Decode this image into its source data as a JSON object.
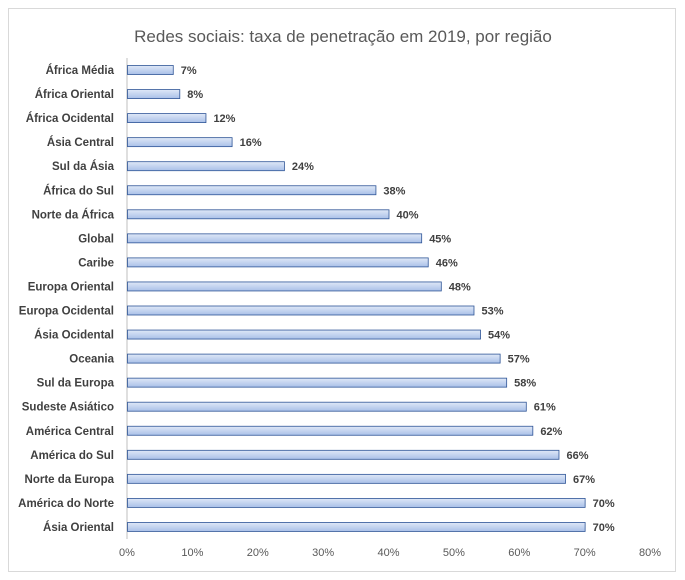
{
  "chart_data": {
    "type": "bar",
    "orientation": "horizontal",
    "title": "Redes sociais: taxa de penetração em 2019, por região",
    "categories": [
      "África Média",
      "África Oriental",
      "África Ocidental",
      "Ásia Central",
      "Sul da Ásia",
      "África do Sul",
      "Norte da África",
      "Global",
      "Caribe",
      "Europa Oriental",
      "Europa Ocidental",
      "Ásia Ocidental",
      "Oceania",
      "Sul da Europa",
      "Sudeste Asiático",
      "América Central",
      "América do Sul",
      "Norte da Europa",
      "América do Norte",
      "Ásia Oriental"
    ],
    "values": [
      7,
      8,
      12,
      16,
      24,
      38,
      40,
      45,
      46,
      48,
      53,
      54,
      57,
      58,
      61,
      62,
      66,
      67,
      70,
      70
    ],
    "data_labels": [
      "7%",
      "8%",
      "12%",
      "16%",
      "24%",
      "38%",
      "40%",
      "45%",
      "46%",
      "48%",
      "53%",
      "54%",
      "57%",
      "58%",
      "61%",
      "62%",
      "66%",
      "67%",
      "70%",
      "70%"
    ],
    "xlim": [
      0,
      80
    ],
    "x_ticks": [
      0,
      10,
      20,
      30,
      40,
      50,
      60,
      70,
      80
    ],
    "x_tick_labels": [
      "0%",
      "10%",
      "20%",
      "30%",
      "40%",
      "50%",
      "60%",
      "70%",
      "80%"
    ],
    "xlabel": "",
    "ylabel": "",
    "grid": false,
    "legend": "none",
    "colors": {
      "bar_fill_top": "#dfe8f7",
      "bar_fill_bottom": "#a9c0e8",
      "bar_stroke": "#2f5597"
    }
  }
}
